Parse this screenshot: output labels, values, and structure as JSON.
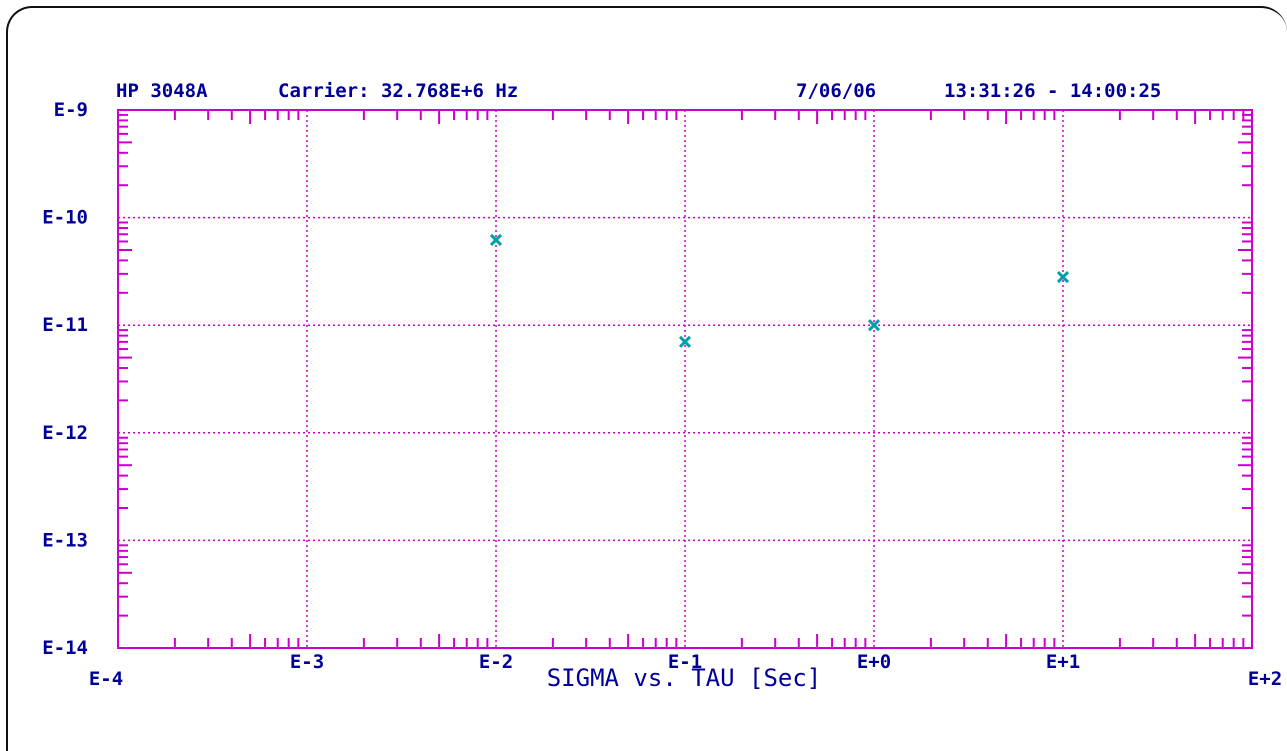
{
  "header": {
    "instrument": "HP 3048A",
    "carrier": "Carrier: 32.768E+6 Hz",
    "date": "7/06/06",
    "time_range": "13:31:26 - 14:00:25"
  },
  "colors": {
    "axis": "#cc00cc",
    "text": "#000099",
    "point": "#00a0a8",
    "frame": "#111111"
  },
  "chart_data": {
    "type": "scatter",
    "title": "",
    "xlabel": "SIGMA vs. TAU [Sec]",
    "ylabel": "",
    "x_scale": "log",
    "y_scale": "log",
    "xlim": [
      0.0001,
      100
    ],
    "ylim": [
      1e-14,
      1e-09
    ],
    "x_tick_labels": [
      "E-4",
      "E-3",
      "E-2",
      "E-1",
      "E+0",
      "E+1",
      "E+2"
    ],
    "y_tick_labels": [
      "E-9",
      "E-10",
      "E-11",
      "E-12",
      "E-13",
      "E-14"
    ],
    "grid": true,
    "series": [
      {
        "x": [
          0.01,
          0.1,
          1,
          10
        ],
        "y": [
          6.2e-11,
          7e-12,
          1e-11,
          2.8e-11
        ]
      }
    ]
  }
}
